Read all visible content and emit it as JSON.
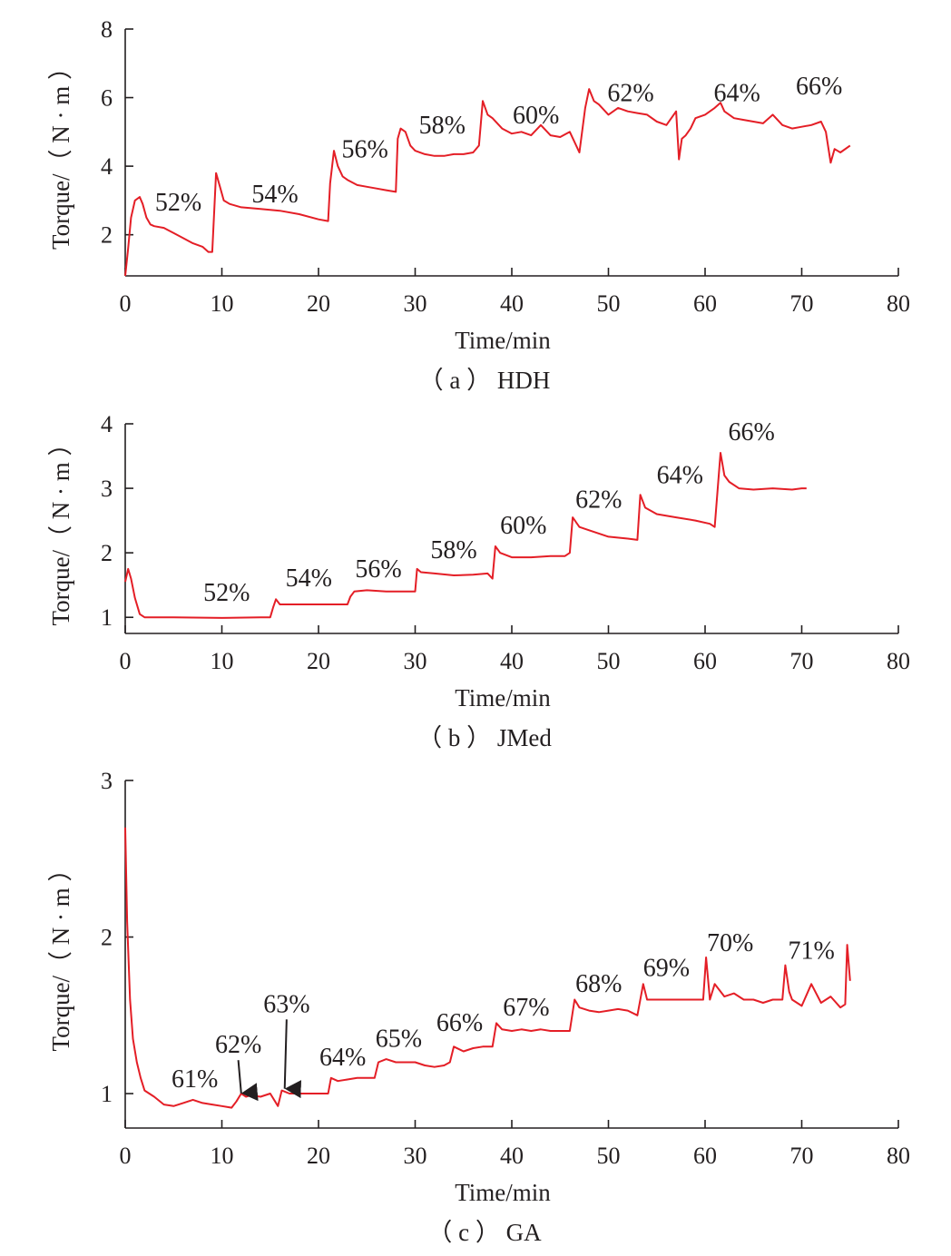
{
  "colors": {
    "series": "#e41e26",
    "axis": "#231f20"
  },
  "chart_data": [
    {
      "type": "line",
      "caption": "（ a ） HDH",
      "xlabel": "Time/min",
      "ylabel": "Torque/（ N · m ）",
      "xlim": [
        0,
        80
      ],
      "ylim": [
        0.8,
        8
      ],
      "xticks": [
        0,
        10,
        20,
        30,
        40,
        50,
        60,
        70,
        80
      ],
      "yticks": [
        2,
        4,
        6,
        8
      ],
      "series": [
        {
          "x": [
            0,
            0.3,
            0.6,
            1.0,
            1.5,
            1.8,
            2.2,
            2.6,
            3.0,
            4,
            5,
            6,
            7,
            8,
            8.6,
            9.0,
            9.4,
            9.8,
            10.2,
            10.8,
            12,
            14,
            16,
            18,
            20,
            21,
            21.2,
            21.6,
            22.0,
            22.5,
            23,
            24,
            25,
            26,
            27,
            28,
            28.2,
            28.5,
            29,
            29.5,
            30,
            31,
            32,
            33,
            34,
            35,
            36,
            36.6,
            37,
            37.5,
            38,
            39,
            40,
            41,
            42,
            43,
            44,
            45,
            46,
            47,
            47.6,
            48,
            48.5,
            49,
            50,
            51,
            52,
            53,
            54,
            55,
            56,
            57,
            57.3,
            57.6,
            58,
            58.5,
            59,
            60,
            61,
            61.6,
            62,
            63,
            64,
            65,
            66,
            67,
            68,
            69,
            70,
            71,
            72,
            72.5,
            73,
            73.4,
            74,
            75
          ],
          "y": [
            0.8,
            1.6,
            2.5,
            3.0,
            3.1,
            2.9,
            2.5,
            2.3,
            2.25,
            2.2,
            2.05,
            1.9,
            1.75,
            1.65,
            1.5,
            1.5,
            3.8,
            3.4,
            3.0,
            2.9,
            2.8,
            2.75,
            2.7,
            2.6,
            2.45,
            2.4,
            3.5,
            4.45,
            4.0,
            3.7,
            3.6,
            3.45,
            3.4,
            3.35,
            3.3,
            3.25,
            4.8,
            5.1,
            5.0,
            4.6,
            4.45,
            4.35,
            4.3,
            4.3,
            4.35,
            4.35,
            4.4,
            4.6,
            5.9,
            5.5,
            5.4,
            5.1,
            4.95,
            5.0,
            4.9,
            5.2,
            4.9,
            4.85,
            5.0,
            4.4,
            5.7,
            6.25,
            5.9,
            5.8,
            5.5,
            5.7,
            5.6,
            5.55,
            5.5,
            5.3,
            5.2,
            5.6,
            4.2,
            4.8,
            4.9,
            5.1,
            5.4,
            5.5,
            5.7,
            5.85,
            5.6,
            5.4,
            5.35,
            5.3,
            5.25,
            5.5,
            5.2,
            5.1,
            5.15,
            5.2,
            5.3,
            5.0,
            4.1,
            4.5,
            4.4,
            4.6
          ]
        }
      ],
      "annotations": [
        {
          "text": "52%",
          "x": 5.5,
          "y": 2.7
        },
        {
          "text": "54%",
          "x": 15.5,
          "y": 2.95
        },
        {
          "text": "56%",
          "x": 24.8,
          "y": 4.25
        },
        {
          "text": "58%",
          "x": 32.8,
          "y": 4.95
        },
        {
          "text": "60%",
          "x": 42.5,
          "y": 5.25
        },
        {
          "text": "62%",
          "x": 52.3,
          "y": 5.9
        },
        {
          "text": "64%",
          "x": 63.3,
          "y": 5.9
        },
        {
          "text": "66%",
          "x": 71.8,
          "y": 6.1
        }
      ]
    },
    {
      "type": "line",
      "caption": "（ b ） JMed",
      "xlabel": "Time/min",
      "ylabel": "Torque/（ N · m ）",
      "xlim": [
        0,
        80
      ],
      "ylim": [
        0.75,
        4
      ],
      "xticks": [
        0,
        10,
        20,
        30,
        40,
        50,
        60,
        70,
        80
      ],
      "yticks": [
        1,
        2,
        3,
        4
      ],
      "series": [
        {
          "x": [
            0,
            0.3,
            0.6,
            1.0,
            1.5,
            2,
            5,
            10,
            14,
            15,
            15.3,
            15.6,
            16,
            18,
            20,
            22,
            23,
            23.3,
            23.7,
            25,
            27,
            29,
            30,
            30.2,
            30.6,
            32,
            34,
            36,
            37.5,
            38,
            38.3,
            38.8,
            40,
            42,
            44,
            45.5,
            46,
            46.3,
            47,
            48,
            50,
            52,
            53,
            53.3,
            53.8,
            55,
            57,
            59,
            60.5,
            61,
            61.6,
            62,
            62.5,
            63.5,
            65,
            67,
            69,
            70,
            70.5
          ],
          "y": [
            1.55,
            1.75,
            1.6,
            1.3,
            1.05,
            1.0,
            1.0,
            0.99,
            1.0,
            1.0,
            1.15,
            1.28,
            1.2,
            1.2,
            1.2,
            1.2,
            1.2,
            1.32,
            1.4,
            1.42,
            1.4,
            1.4,
            1.4,
            1.75,
            1.7,
            1.68,
            1.65,
            1.66,
            1.68,
            1.6,
            2.1,
            2.0,
            1.93,
            1.93,
            1.95,
            1.95,
            2.0,
            2.55,
            2.4,
            2.35,
            2.25,
            2.22,
            2.2,
            2.9,
            2.7,
            2.6,
            2.55,
            2.5,
            2.45,
            2.4,
            3.55,
            3.2,
            3.1,
            3.0,
            2.98,
            3.0,
            2.98,
            3.0,
            3.0
          ]
        }
      ],
      "annotations": [
        {
          "text": "52%",
          "x": 10.5,
          "y": 1.26
        },
        {
          "text": "54%",
          "x": 19.0,
          "y": 1.48
        },
        {
          "text": "56%",
          "x": 26.2,
          "y": 1.62
        },
        {
          "text": "58%",
          "x": 34.0,
          "y": 1.92
        },
        {
          "text": "60%",
          "x": 41.2,
          "y": 2.3
        },
        {
          "text": "62%",
          "x": 49.0,
          "y": 2.7
        },
        {
          "text": "64%",
          "x": 57.4,
          "y": 3.08
        },
        {
          "text": "66%",
          "x": 64.8,
          "y": 3.75
        }
      ]
    },
    {
      "type": "line",
      "caption": "（ c ） GA",
      "xlabel": "Time/min",
      "ylabel": "Torque/（ N · m ）",
      "xlim": [
        0,
        80
      ],
      "ylim": [
        0.78,
        3
      ],
      "xticks": [
        0,
        10,
        20,
        30,
        40,
        50,
        60,
        70,
        80
      ],
      "yticks": [
        1,
        2,
        3
      ],
      "series": [
        {
          "x": [
            0,
            0.2,
            0.5,
            0.8,
            1.2,
            1.6,
            2,
            3,
            4,
            5,
            6,
            7,
            8,
            9,
            10,
            11,
            11.5,
            12,
            12.5,
            13,
            14,
            15,
            15.8,
            16.2,
            17,
            18,
            19,
            20,
            21,
            21.3,
            22,
            23,
            24,
            25,
            25.8,
            26.2,
            27,
            28,
            29,
            30,
            31,
            32,
            33,
            33.6,
            34,
            35,
            36,
            37,
            38,
            38.4,
            39,
            40,
            41,
            42,
            43,
            44,
            45,
            46,
            46.5,
            47,
            48,
            49,
            50,
            51,
            52,
            53,
            53.6,
            54,
            55,
            56,
            58,
            59.8,
            60.1,
            60.5,
            61,
            62,
            63,
            64,
            65,
            66,
            67,
            68,
            68.3,
            68.7,
            69,
            70,
            71,
            72,
            73,
            74,
            74.5,
            74.7,
            75
          ],
          "y": [
            2.7,
            2.1,
            1.6,
            1.35,
            1.2,
            1.1,
            1.02,
            0.98,
            0.93,
            0.92,
            0.94,
            0.96,
            0.94,
            0.93,
            0.92,
            0.91,
            0.95,
            1.0,
            0.98,
            0.99,
            0.98,
            1.0,
            0.92,
            1.02,
            1.0,
            1.0,
            1.0,
            1.0,
            1.0,
            1.1,
            1.08,
            1.09,
            1.1,
            1.1,
            1.1,
            1.2,
            1.22,
            1.2,
            1.2,
            1.2,
            1.18,
            1.17,
            1.18,
            1.2,
            1.3,
            1.27,
            1.29,
            1.3,
            1.3,
            1.45,
            1.41,
            1.4,
            1.41,
            1.4,
            1.41,
            1.4,
            1.4,
            1.4,
            1.6,
            1.55,
            1.53,
            1.52,
            1.53,
            1.54,
            1.53,
            1.5,
            1.7,
            1.6,
            1.6,
            1.6,
            1.6,
            1.6,
            1.87,
            1.6,
            1.7,
            1.62,
            1.64,
            1.6,
            1.6,
            1.58,
            1.6,
            1.6,
            1.82,
            1.65,
            1.6,
            1.56,
            1.7,
            1.58,
            1.62,
            1.55,
            1.57,
            1.95,
            1.72
          ]
        }
      ],
      "annotations": [
        {
          "text": "61%",
          "x": 7.2,
          "y": 1.04
        },
        {
          "text": "62%",
          "x": 11.7,
          "y": 1.26
        },
        {
          "text": "63%",
          "x": 16.7,
          "y": 1.52
        },
        {
          "text": "64%",
          "x": 22.5,
          "y": 1.18
        },
        {
          "text": "65%",
          "x": 28.3,
          "y": 1.3
        },
        {
          "text": "66%",
          "x": 34.6,
          "y": 1.4
        },
        {
          "text": "67%",
          "x": 41.5,
          "y": 1.5
        },
        {
          "text": "68%",
          "x": 49.0,
          "y": 1.65
        },
        {
          "text": "69%",
          "x": 56.0,
          "y": 1.75
        },
        {
          "text": "70%",
          "x": 62.6,
          "y": 1.91
        },
        {
          "text": "71%",
          "x": 71.0,
          "y": 1.86
        }
      ],
      "arrows": [
        {
          "label": "62%",
          "to_x": 12.0,
          "to_y": 0.99
        },
        {
          "label": "63%",
          "to_x": 16.5,
          "to_y": 1.02
        }
      ]
    }
  ]
}
